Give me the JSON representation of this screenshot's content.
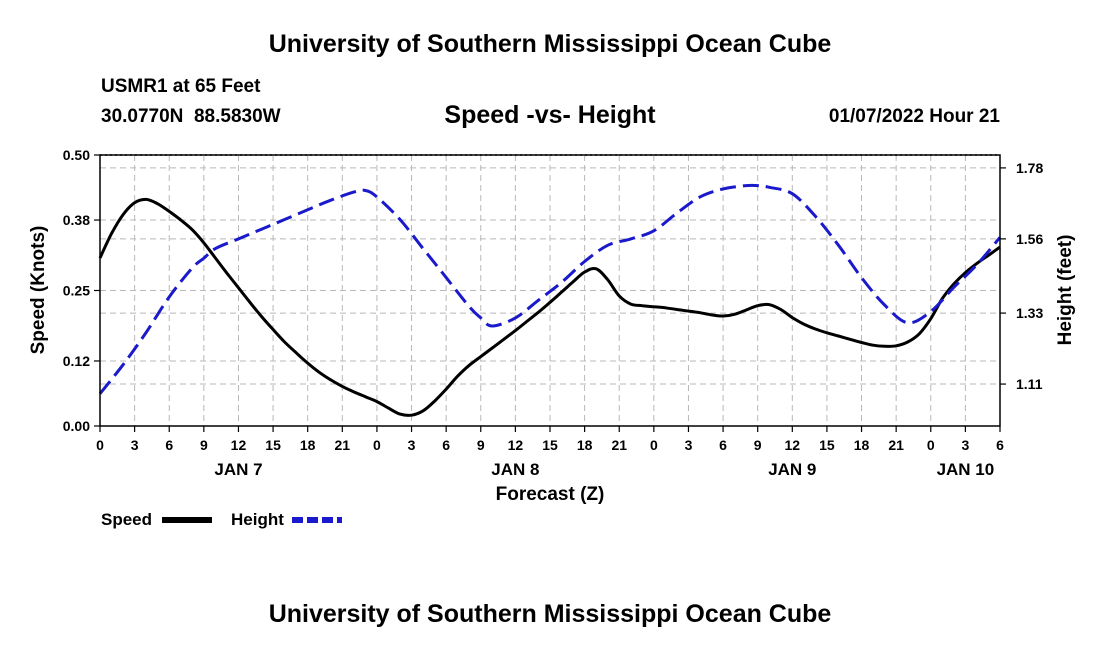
{
  "header": {
    "title": "University of Southern Mississippi Ocean Cube",
    "station": "USMR1 at 65 Feet",
    "lat": "30.0770N",
    "lon": "88.5830W",
    "subtitle": "Speed -vs- Height",
    "date": "01/07/2022 Hour 21"
  },
  "footer": {
    "title": "University of Southern Mississippi Ocean Cube"
  },
  "colors": {
    "speed": "#000000",
    "height": "#1a1acc",
    "grid": "#b8b8b8"
  },
  "chart_data": {
    "type": "line",
    "title": "Speed -vs- Height",
    "xlabel": "Forecast (Z)",
    "ylabel": "Speed (Knots)",
    "y2label": "Height (feet)",
    "x_unit": "hours from Jan 7 00Z",
    "xlim": [
      0,
      78
    ],
    "x_ticks": [
      0,
      3,
      6,
      9,
      12,
      15,
      18,
      21,
      24,
      27,
      30,
      33,
      36,
      39,
      42,
      45,
      48,
      51,
      54,
      57,
      60,
      63,
      66,
      69,
      72,
      75,
      78
    ],
    "x_tick_labels": [
      "0",
      "3",
      "6",
      "9",
      "12",
      "15",
      "18",
      "21",
      "0",
      "3",
      "6",
      "9",
      "12",
      "15",
      "18",
      "21",
      "0",
      "3",
      "6",
      "9",
      "12",
      "15",
      "18",
      "21",
      "0",
      "3",
      "6"
    ],
    "day_labels": [
      {
        "x": 12,
        "label": "JAN 7"
      },
      {
        "x": 36,
        "label": "JAN 8"
      },
      {
        "x": 60,
        "label": "JAN 9"
      },
      {
        "x": 75,
        "label": "JAN 10"
      }
    ],
    "ylim": [
      0,
      0.5
    ],
    "y_ticks": [
      0.0,
      0.12,
      0.25,
      0.38,
      0.5
    ],
    "y_tick_labels": [
      "0.00",
      "0.12",
      "0.25",
      "0.38",
      "0.50"
    ],
    "y2lim": [
      0.98,
      1.82
    ],
    "y2_ticks": [
      1.11,
      1.33,
      1.56,
      1.78
    ],
    "y2_tick_labels": [
      "1.11",
      "1.33",
      "1.56",
      "1.78"
    ],
    "grid": true,
    "legend_position": "bottom-left",
    "series": [
      {
        "name": "Speed",
        "axis": "left",
        "style": "solid",
        "x": [
          0,
          1,
          2,
          3,
          4,
          5,
          6,
          7,
          8,
          9,
          10,
          11,
          12,
          13,
          14,
          15,
          16,
          17,
          18,
          19,
          20,
          21,
          22,
          23,
          24,
          25,
          26,
          27,
          28,
          29,
          30,
          31,
          32,
          33,
          34,
          35,
          36,
          37,
          38,
          39,
          40,
          41,
          42,
          43,
          44,
          45,
          46,
          47,
          48,
          49,
          50,
          51,
          52,
          53,
          54,
          55,
          56,
          57,
          58,
          59,
          60,
          61,
          62,
          63,
          64,
          65,
          66,
          67,
          68,
          69,
          70,
          71,
          72,
          73,
          74,
          75,
          76,
          77,
          78
        ],
        "values": [
          0.31,
          0.355,
          0.39,
          0.412,
          0.418,
          0.41,
          0.396,
          0.38,
          0.362,
          0.338,
          0.31,
          0.282,
          0.255,
          0.228,
          0.202,
          0.178,
          0.155,
          0.135,
          0.116,
          0.099,
          0.085,
          0.073,
          0.063,
          0.054,
          0.045,
          0.033,
          0.022,
          0.02,
          0.028,
          0.046,
          0.068,
          0.092,
          0.112,
          0.128,
          0.144,
          0.16,
          0.176,
          0.193,
          0.21,
          0.228,
          0.247,
          0.266,
          0.284,
          0.29,
          0.27,
          0.24,
          0.225,
          0.222,
          0.22,
          0.218,
          0.215,
          0.212,
          0.209,
          0.205,
          0.203,
          0.206,
          0.214,
          0.222,
          0.224,
          0.215,
          0.2,
          0.188,
          0.179,
          0.172,
          0.166,
          0.16,
          0.154,
          0.149,
          0.147,
          0.148,
          0.155,
          0.17,
          0.198,
          0.235,
          0.262,
          0.283,
          0.3,
          0.315,
          0.33
        ]
      },
      {
        "name": "Height",
        "axis": "right",
        "style": "dashed",
        "x": [
          0,
          2,
          4,
          6,
          8,
          9,
          10,
          12,
          14,
          16,
          18,
          20,
          22,
          23,
          24,
          26,
          28,
          30,
          32,
          33,
          34,
          36,
          38,
          40,
          42,
          44,
          46,
          48,
          50,
          52,
          54,
          56,
          57,
          58,
          60,
          62,
          64,
          66,
          68,
          70,
          72,
          74,
          76,
          78
        ],
        "values": [
          1.08,
          1.17,
          1.27,
          1.38,
          1.47,
          1.5,
          1.53,
          1.56,
          1.59,
          1.62,
          1.65,
          1.68,
          1.705,
          1.71,
          1.69,
          1.62,
          1.53,
          1.44,
          1.35,
          1.315,
          1.29,
          1.315,
          1.37,
          1.425,
          1.49,
          1.54,
          1.56,
          1.585,
          1.64,
          1.69,
          1.715,
          1.725,
          1.725,
          1.72,
          1.7,
          1.63,
          1.54,
          1.44,
          1.355,
          1.3,
          1.335,
          1.41,
          1.48,
          1.565
        ]
      }
    ]
  }
}
